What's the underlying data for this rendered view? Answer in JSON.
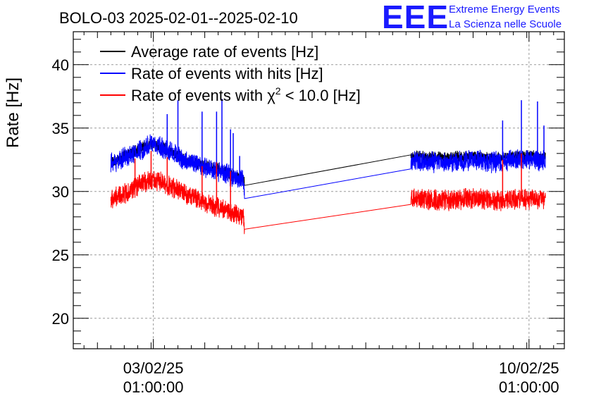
{
  "header": {
    "logo_mark": "EEE",
    "logo_line1": "Extreme Energy Events",
    "logo_line2": "La Scienza nelle Scuole"
  },
  "chart_data": {
    "type": "line",
    "title": "BOLO-03 2025-02-01--2025-02-10",
    "xlabel": "",
    "ylabel": "Rate [Hz]",
    "ylim": [
      17.6,
      42.6
    ],
    "yticks": [
      20,
      25,
      30,
      35,
      40
    ],
    "x_unit": "days since 2025-02-01 00:00",
    "xlim": [
      0.55,
      9.7
    ],
    "xticks": [
      {
        "value": 2.0417,
        "date": "03/02/25",
        "time": "01:00:00"
      },
      {
        "value": 9.0417,
        "date": "10/02/25",
        "time": "01:00:00"
      }
    ],
    "grid": true,
    "legend_position": "top-left",
    "series": [
      {
        "name": "Average rate of events [Hz]",
        "color": "#000000",
        "noise": 0.5,
        "spikes": [],
        "x": [
          1.25,
          1.7,
          2.0,
          2.3,
          2.7,
          3.2,
          3.72,
          3.74,
          6.84,
          6.86,
          7.2,
          7.6,
          8.0,
          8.4,
          8.8,
          9.2,
          9.35
        ],
        "values": [
          32.3,
          33.2,
          33.8,
          33.3,
          32.4,
          31.9,
          31.0,
          30.6,
          32.6,
          32.8,
          32.7,
          32.7,
          32.8,
          32.6,
          32.8,
          32.8,
          32.7
        ]
      },
      {
        "name": "Rate of events with hits [Hz]",
        "color": "#0000ff",
        "noise": 0.9,
        "spikes": [
          [
            2.3,
            36.1
          ],
          [
            2.5,
            37.2
          ],
          [
            2.95,
            36.3
          ],
          [
            3.22,
            36.3
          ],
          [
            3.32,
            37.3
          ],
          [
            3.48,
            34.9
          ],
          [
            3.53,
            34.6
          ],
          [
            3.65,
            32.8
          ],
          [
            8.55,
            35.6
          ],
          [
            8.9,
            37.2
          ],
          [
            9.2,
            37.1
          ],
          [
            9.32,
            35.2
          ]
        ],
        "x": [
          1.25,
          1.7,
          2.0,
          2.3,
          2.7,
          3.2,
          3.72,
          3.74,
          6.84,
          6.86,
          7.2,
          7.6,
          8.0,
          8.4,
          8.8,
          9.2,
          9.35
        ],
        "values": [
          32.2,
          33.0,
          33.8,
          33.3,
          32.3,
          31.7,
          30.9,
          29.5,
          32.3,
          32.4,
          32.3,
          32.3,
          32.5,
          32.3,
          32.5,
          32.5,
          32.4
        ]
      },
      {
        "name": "Rate of events with χ² < 10.0 [Hz]",
        "color": "#ff0000",
        "noise": 0.9,
        "spikes": [
          [
            1.7,
            32.6
          ],
          [
            2.0,
            33.2
          ],
          [
            2.3,
            32.7
          ],
          [
            2.95,
            32.0
          ],
          [
            3.22,
            32.3
          ],
          [
            3.48,
            31.6
          ],
          [
            8.55,
            32.5
          ],
          [
            8.9,
            33.0
          ]
        ],
        "x": [
          1.25,
          1.7,
          2.0,
          2.3,
          2.7,
          3.2,
          3.72,
          3.74,
          6.84,
          6.86,
          7.2,
          7.6,
          8.0,
          8.4,
          8.8,
          9.2,
          9.35
        ],
        "values": [
          29.3,
          30.3,
          31.0,
          30.5,
          29.7,
          28.8,
          28.0,
          26.9,
          29.3,
          29.5,
          29.3,
          29.3,
          29.5,
          29.3,
          29.4,
          29.4,
          29.3
        ]
      }
    ],
    "legend": {
      "black": "Average rate of events [Hz]",
      "blue": "Rate of events with hits [Hz]",
      "red_prefix": "Rate of events with ",
      "red_symbol": "χ",
      "red_superscript": "2",
      "red_suffix": " < 10.0 [Hz]"
    }
  }
}
